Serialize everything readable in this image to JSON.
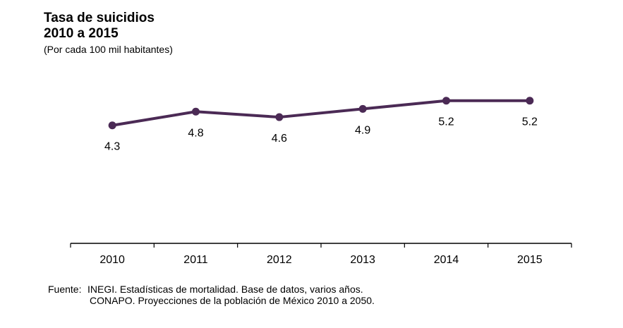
{
  "chart_data": {
    "type": "line",
    "title": "Tasa de suicidios",
    "title_line2": "2010 a 2015",
    "subtitle": "(Por cada 100 mil habitantes)",
    "xlabel": "",
    "ylabel": "",
    "categories": [
      "2010",
      "2011",
      "2012",
      "2013",
      "2014",
      "2015"
    ],
    "series": [
      {
        "name": "Tasa de suicidios",
        "values": [
          4.3,
          4.8,
          4.6,
          4.9,
          5.2,
          5.2
        ],
        "labels": [
          "4.3",
          "4.8",
          "4.6",
          "4.9",
          "5.2",
          "5.2"
        ],
        "label_position": [
          "below",
          "below",
          "below",
          "below",
          "below",
          "below"
        ],
        "color": "#4B2A55"
      }
    ],
    "ylim": [
      0,
      5.2
    ],
    "grid": false,
    "legend": "none",
    "y_axis_visible": false
  },
  "source": {
    "label": "Fuente:",
    "lines": [
      "INEGI. Estadísticas de mortalidad. Base de datos, varios años.",
      "CONAPO. Proyecciones de la población de México 2010 a 2050."
    ]
  }
}
